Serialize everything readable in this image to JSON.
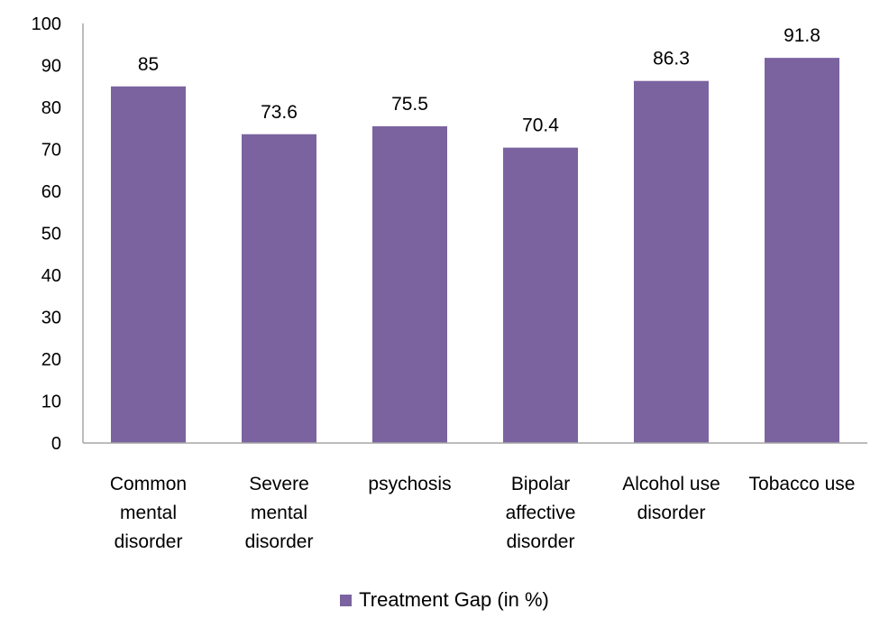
{
  "chart_data": {
    "type": "bar",
    "title": "",
    "xlabel": "",
    "ylabel": "",
    "categories": [
      [
        "Common",
        "mental",
        "disorder"
      ],
      [
        "Severe",
        "mental",
        "disorder"
      ],
      [
        "psychosis"
      ],
      [
        "Bipolar",
        "affective",
        "disorder"
      ],
      [
        "Alcohol use",
        "disorder"
      ],
      [
        "Tobacco use"
      ]
    ],
    "series": [
      {
        "name": "Treatment Gap (in %)",
        "values": [
          85,
          73.6,
          75.5,
          70.4,
          86.3,
          91.8
        ],
        "labels": [
          "85",
          "73.6",
          "75.5",
          "70.4",
          "86.3",
          "91.8"
        ],
        "color": "#7B63A0"
      }
    ],
    "yticks": [
      "0",
      "10",
      "20",
      "30",
      "40",
      "50",
      "60",
      "70",
      "80",
      "90",
      "100"
    ],
    "ylim": [
      0,
      100
    ],
    "grid": false,
    "legend_position": "bottom"
  }
}
